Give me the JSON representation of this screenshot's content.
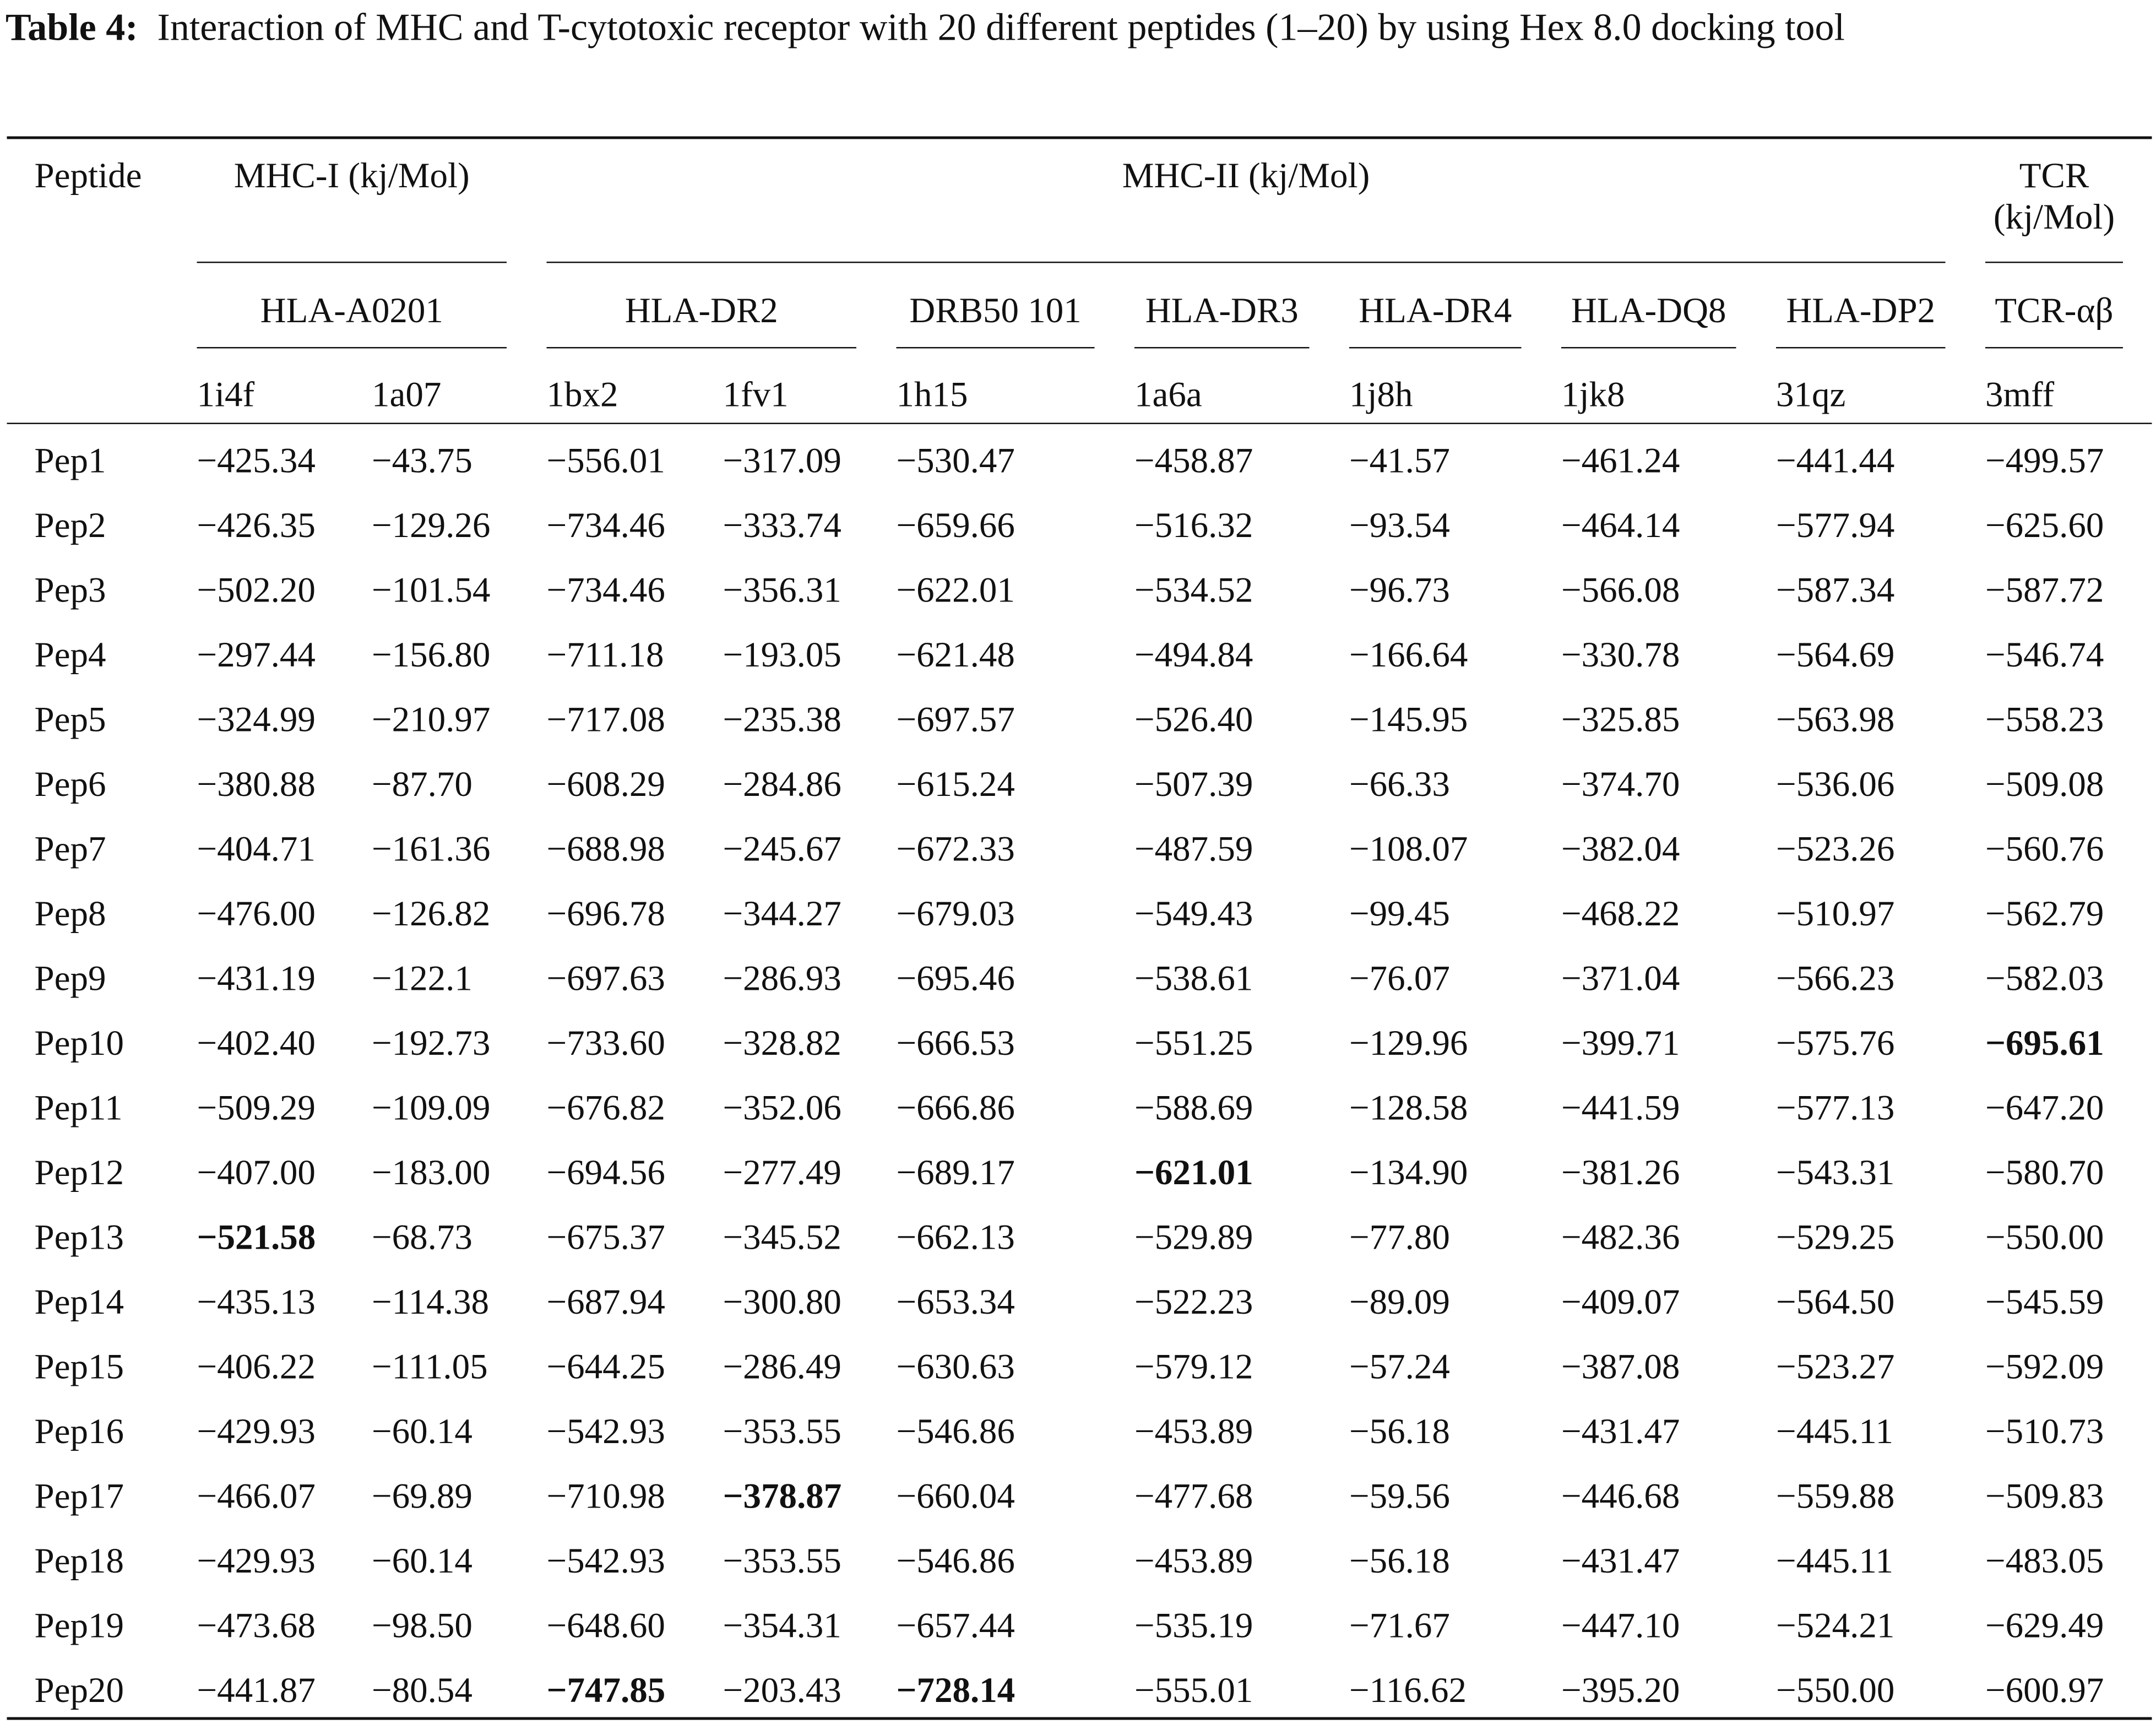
{
  "caption": {
    "label": "Table 4:",
    "text": "Interaction of MHC and T-cytotoxic receptor with 20 different peptides (1–20) by using Hex 8.0 docking tool"
  },
  "table": {
    "header_row1": [
      {
        "text": "Peptide",
        "span": 1
      },
      {
        "text": "MHC-I (kj/Mol)",
        "span": 2
      },
      {
        "text": "MHC-II (kj/Mol)",
        "span": 7
      },
      {
        "text": "TCR (kj/Mol)",
        "span": 1
      }
    ],
    "header_row2": [
      {
        "text": "HLA-A0201",
        "span": 2
      },
      {
        "text": "HLA-DR2",
        "span": 2
      },
      {
        "text": "DRB50 101",
        "span": 1
      },
      {
        "text": "HLA-DR3",
        "span": 1
      },
      {
        "text": "HLA-DR4",
        "span": 1
      },
      {
        "text": "HLA-DQ8",
        "span": 1
      },
      {
        "text": "HLA-DP2",
        "span": 1
      },
      {
        "text": "TCR-αβ",
        "span": 1
      }
    ],
    "header_row3": [
      "1i4f",
      "1a07",
      "1bx2",
      "1fv1",
      "1h15",
      "1a6a",
      "1j8h",
      "1jk8",
      "31qz",
      "3mff"
    ],
    "rows": [
      [
        "Pep1",
        "−425.34",
        "−43.75",
        "−556.01",
        "−317.09",
        "−530.47",
        "−458.87",
        "−41.57",
        "−461.24",
        "−441.44",
        "−499.57"
      ],
      [
        "Pep2",
        "−426.35",
        "−129.26",
        "−734.46",
        "−333.74",
        "−659.66",
        "−516.32",
        "−93.54",
        "−464.14",
        "−577.94",
        "−625.60"
      ],
      [
        "Pep3",
        "−502.20",
        "−101.54",
        "−734.46",
        "−356.31",
        "−622.01",
        "−534.52",
        "−96.73",
        "−566.08",
        "−587.34",
        "−587.72"
      ],
      [
        "Pep4",
        "−297.44",
        "−156.80",
        "−711.18",
        "−193.05",
        "−621.48",
        "−494.84",
        "−166.64",
        "−330.78",
        "−564.69",
        "−546.74"
      ],
      [
        "Pep5",
        "−324.99",
        "−210.97",
        "−717.08",
        "−235.38",
        "−697.57",
        "−526.40",
        "−145.95",
        "−325.85",
        "−563.98",
        "−558.23"
      ],
      [
        "Pep6",
        "−380.88",
        "−87.70",
        "−608.29",
        "−284.86",
        "−615.24",
        "−507.39",
        "−66.33",
        "−374.70",
        "−536.06",
        "−509.08"
      ],
      [
        "Pep7",
        "−404.71",
        "−161.36",
        "−688.98",
        "−245.67",
        "−672.33",
        "−487.59",
        "−108.07",
        "−382.04",
        "−523.26",
        "−560.76"
      ],
      [
        "Pep8",
        "−476.00",
        "−126.82",
        "−696.78",
        "−344.27",
        "−679.03",
        "−549.43",
        "−99.45",
        "−468.22",
        "−510.97",
        "−562.79"
      ],
      [
        "Pep9",
        "−431.19",
        "−122.1",
        "−697.63",
        "−286.93",
        "−695.46",
        "−538.61",
        "−76.07",
        "−371.04",
        "−566.23",
        "−582.03"
      ],
      [
        "Pep10",
        "−402.40",
        "−192.73",
        "−733.60",
        "−328.82",
        "−666.53",
        "−551.25",
        "−129.96",
        "−399.71",
        "−575.76",
        "−695.61"
      ],
      [
        "Pep11",
        "−509.29",
        "−109.09",
        "−676.82",
        "−352.06",
        "−666.86",
        "−588.69",
        "−128.58",
        "−441.59",
        "−577.13",
        "−647.20"
      ],
      [
        "Pep12",
        "−407.00",
        "−183.00",
        "−694.56",
        "−277.49",
        "−689.17",
        "−621.01",
        "−134.90",
        "−381.26",
        "−543.31",
        "−580.70"
      ],
      [
        "Pep13",
        "−521.58",
        "−68.73",
        "−675.37",
        "−345.52",
        "−662.13",
        "−529.89",
        "−77.80",
        "−482.36",
        "−529.25",
        "−550.00"
      ],
      [
        "Pep14",
        "−435.13",
        "−114.38",
        "−687.94",
        "−300.80",
        "−653.34",
        "−522.23",
        "−89.09",
        "−409.07",
        "−564.50",
        "−545.59"
      ],
      [
        "Pep15",
        "−406.22",
        "−111.05",
        "−644.25",
        "−286.49",
        "−630.63",
        "−579.12",
        "−57.24",
        "−387.08",
        "−523.27",
        "−592.09"
      ],
      [
        "Pep16",
        "−429.93",
        "−60.14",
        "−542.93",
        "−353.55",
        "−546.86",
        "−453.89",
        "−56.18",
        "−431.47",
        "−445.11",
        "−510.73"
      ],
      [
        "Pep17",
        "−466.07",
        "−69.89",
        "−710.98",
        "−378.87",
        "−660.04",
        "−477.68",
        "−59.56",
        "−446.68",
        "−559.88",
        "−509.83"
      ],
      [
        "Pep18",
        "−429.93",
        "−60.14",
        "−542.93",
        "−353.55",
        "−546.86",
        "−453.89",
        "−56.18",
        "−431.47",
        "−445.11",
        "−483.05"
      ],
      [
        "Pep19",
        "−473.68",
        "−98.50",
        "−648.60",
        "−354.31",
        "−657.44",
        "−535.19",
        "−71.67",
        "−447.10",
        "−524.21",
        "−629.49"
      ],
      [
        "Pep20",
        "−441.87",
        "−80.54",
        "−747.85",
        "−203.43",
        "−728.14",
        "−555.01",
        "−116.62",
        "−395.20",
        "−550.00",
        "−600.97"
      ]
    ],
    "bold_cells": [
      [
        9,
        10
      ],
      [
        11,
        6
      ],
      [
        12,
        1
      ],
      [
        16,
        4
      ],
      [
        19,
        3
      ],
      [
        19,
        5
      ]
    ]
  }
}
